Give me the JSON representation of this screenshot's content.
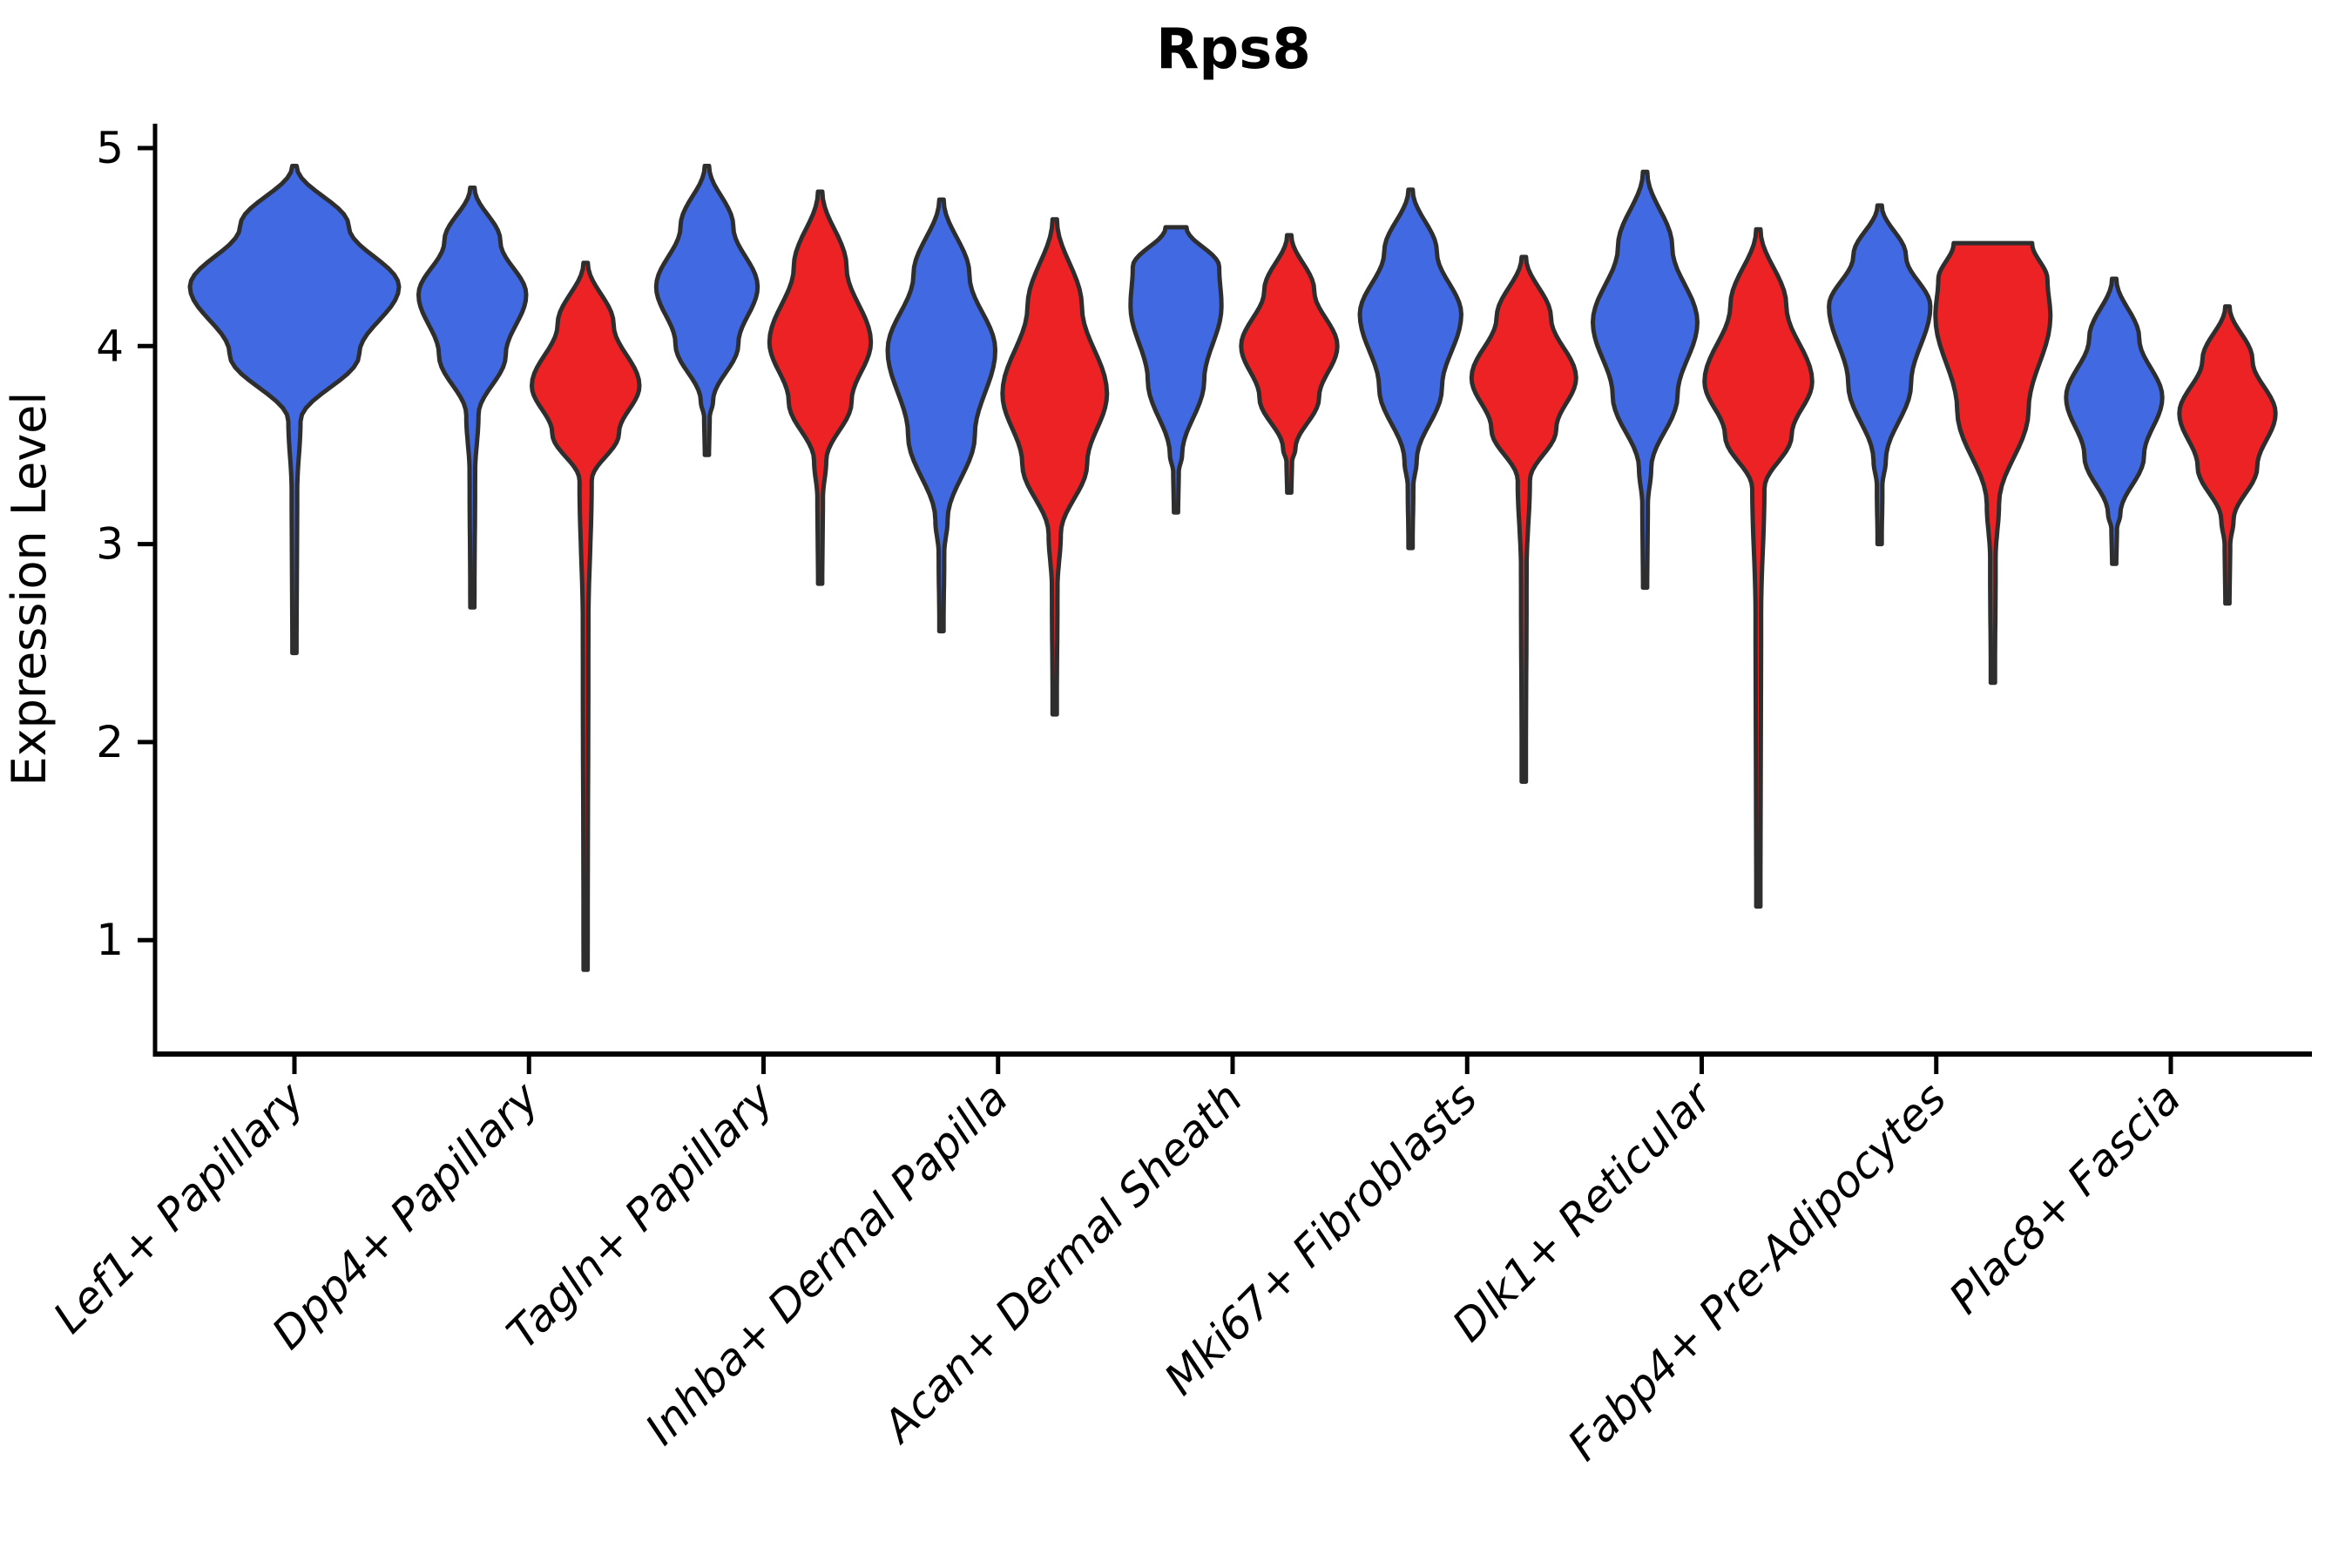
{
  "chart_data": {
    "type": "violin",
    "title": "Rps8",
    "xlabel": "",
    "ylabel": "Expression Level",
    "ylim": [
      0.42,
      5.15
    ],
    "yticks": [
      "1",
      "2",
      "3",
      "4",
      "5"
    ],
    "grid": false,
    "legend_position": "none",
    "x_tick_rotation": 45,
    "categories": [
      "Lef1+ Papillary",
      "Dpp4+ Papillary",
      "Tagln+ Papillary",
      "Inhba+ Dermal Papilla",
      "Acan+ Dermal Sheath",
      "Mki67+ Fibroblasts",
      "Dlk1+ Reticular",
      "Fabp4+ Pre-Adipocytes",
      "Plac8+ Fascia"
    ],
    "colors": {
      "blue": "#4169E1",
      "red": "#ED2224",
      "outline": "#2E2E2E",
      "axis": "#000000"
    },
    "violins": [
      {
        "category_index": 0,
        "split": "blue",
        "single": true,
        "max": 4.91,
        "mode": 4.3,
        "neck": 3.62,
        "min": 2.45,
        "rel_width": 2.0,
        "flat_top_width": 0
      },
      {
        "category_index": 1,
        "split": "blue",
        "single": false,
        "max": 4.8,
        "mode": 4.26,
        "neck": 3.65,
        "min": 2.68,
        "rel_width": 1.03,
        "flat_top_width": 0
      },
      {
        "category_index": 1,
        "split": "red",
        "single": false,
        "max": 4.42,
        "mode": 3.8,
        "neck": 3.32,
        "min": 0.85,
        "rel_width": 1.03,
        "flat_top_width": 0
      },
      {
        "category_index": 2,
        "split": "blue",
        "single": false,
        "max": 4.91,
        "mode": 4.3,
        "neck": 3.72,
        "min": 3.45,
        "rel_width": 0.97,
        "flat_top_width": 0
      },
      {
        "category_index": 2,
        "split": "red",
        "single": false,
        "max": 4.78,
        "mode": 4.02,
        "neck": 3.42,
        "min": 2.8,
        "rel_width": 0.97,
        "flat_top_width": 0
      },
      {
        "category_index": 3,
        "split": "blue",
        "single": false,
        "max": 4.74,
        "mode": 3.98,
        "neck": 3.12,
        "min": 2.56,
        "rel_width": 1.03,
        "flat_top_width": 0
      },
      {
        "category_index": 3,
        "split": "red",
        "single": false,
        "max": 4.64,
        "mode": 3.76,
        "neck": 3.05,
        "min": 2.14,
        "rel_width": 1.0,
        "flat_top_width": 0
      },
      {
        "category_index": 4,
        "split": "blue",
        "single": false,
        "max": 4.6,
        "mode": 4.2,
        "neck": 3.45,
        "min": 3.16,
        "rel_width": 0.87,
        "flat_top_width": 12
      },
      {
        "category_index": 4,
        "split": "red",
        "single": false,
        "max": 4.56,
        "mode": 4.0,
        "neck": 3.48,
        "min": 3.26,
        "rel_width": 0.92,
        "flat_top_width": 0
      },
      {
        "category_index": 5,
        "split": "blue",
        "single": false,
        "max": 4.79,
        "mode": 4.16,
        "neck": 3.42,
        "min": 2.98,
        "rel_width": 0.97,
        "flat_top_width": 0
      },
      {
        "category_index": 5,
        "split": "red",
        "single": false,
        "max": 4.45,
        "mode": 3.84,
        "neck": 3.32,
        "min": 1.8,
        "rel_width": 1.0,
        "flat_top_width": 0
      },
      {
        "category_index": 6,
        "split": "blue",
        "single": false,
        "max": 4.88,
        "mode": 4.12,
        "neck": 3.38,
        "min": 2.78,
        "rel_width": 1.0,
        "flat_top_width": 0
      },
      {
        "category_index": 6,
        "split": "red",
        "single": false,
        "max": 4.59,
        "mode": 3.82,
        "neck": 3.28,
        "min": 1.17,
        "rel_width": 1.03,
        "flat_top_width": 0
      },
      {
        "category_index": 7,
        "split": "blue",
        "single": false,
        "max": 4.71,
        "mode": 4.2,
        "neck": 3.42,
        "min": 3.0,
        "rel_width": 0.97,
        "flat_top_width": 0
      },
      {
        "category_index": 7,
        "split": "red",
        "single": false,
        "max": 4.52,
        "mode": 4.15,
        "neck": 3.2,
        "min": 2.3,
        "rel_width": 1.1,
        "flat_top_width": 45
      },
      {
        "category_index": 8,
        "split": "blue",
        "single": false,
        "max": 4.34,
        "mode": 3.74,
        "neck": 3.15,
        "min": 2.9,
        "rel_width": 0.92,
        "flat_top_width": 0
      },
      {
        "category_index": 8,
        "split": "red",
        "single": false,
        "max": 4.2,
        "mode": 3.66,
        "neck": 3.12,
        "min": 2.7,
        "rel_width": 0.92,
        "flat_top_width": 0
      }
    ]
  }
}
